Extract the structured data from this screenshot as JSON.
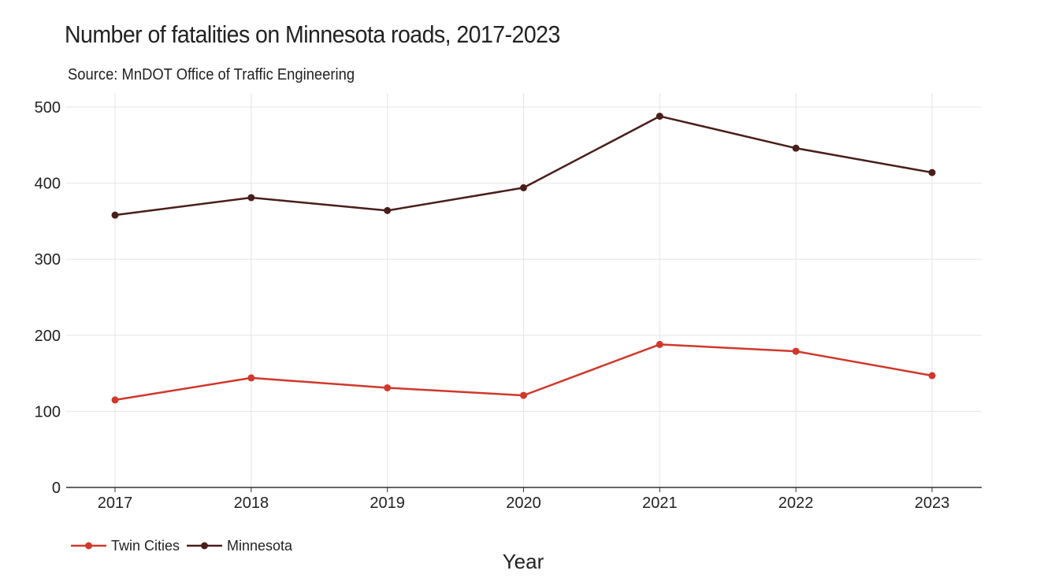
{
  "chart_data": {
    "type": "line",
    "title": "Number of fatalities on Minnesota roads, 2017-2023",
    "subtitle": "Source: MnDOT Office of Traffic Engineering",
    "xlabel": "Year",
    "ylabel": "",
    "categories": [
      "2017",
      "2018",
      "2019",
      "2020",
      "2021",
      "2022",
      "2023"
    ],
    "ylim": [
      0,
      500
    ],
    "yticks": [
      0,
      100,
      200,
      300,
      400,
      500
    ],
    "grid": true,
    "legend_position": "bottom-left",
    "series": [
      {
        "name": "Twin Cities",
        "color": "#d0382b",
        "values": [
          115,
          144,
          131,
          121,
          188,
          179,
          147
        ]
      },
      {
        "name": "Minnesota",
        "color": "#4a1e1b",
        "values": [
          358,
          381,
          364,
          394,
          488,
          446,
          414
        ]
      }
    ]
  }
}
